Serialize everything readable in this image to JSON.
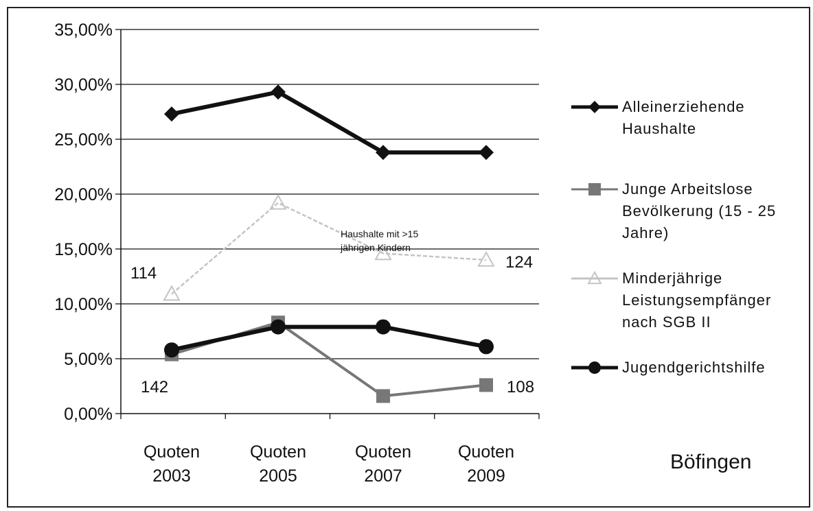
{
  "chart_data": {
    "type": "line",
    "categories": [
      [
        "Quoten",
        "2003"
      ],
      [
        "Quoten",
        "2005"
      ],
      [
        "Quoten",
        "2007"
      ],
      [
        "Quoten",
        "2009"
      ]
    ],
    "y_ticks": [
      "0,00%",
      "5,00%",
      "10,00%",
      "15,00%",
      "20,00%",
      "25,00%",
      "30,00%",
      "35,00%"
    ],
    "ylim": [
      0,
      35
    ],
    "grid": "horizontal",
    "legend_position": "right",
    "series": [
      {
        "name": "Alleinerziehende Haushalte",
        "legend_lines": [
          "Alleinerziehende",
          "Haushalte"
        ],
        "values": [
          27.3,
          29.3,
          23.8,
          23.8
        ],
        "marker": "diamond",
        "color": "#111111",
        "style": "solid"
      },
      {
        "name": "Junge Arbeitslose Bevölkerung (15 - 25 Jahre)",
        "legend_lines": [
          "Junge  Arbeitslose",
          "Bevölkerung (15 - 25",
          "Jahre)"
        ],
        "values": [
          5.4,
          8.3,
          1.6,
          2.6
        ],
        "marker": "square",
        "color": "#777777",
        "style": "faint"
      },
      {
        "name": "Minderjährige Leistungsempfänger nach SGB II",
        "legend_lines": [
          "Minderjährige",
          "Leistungsempfänger",
          "nach SGB II"
        ],
        "values": [
          10.9,
          19.2,
          14.6,
          14.0
        ],
        "marker": "triangle",
        "color": "#c4c4c4",
        "style": "faint"
      },
      {
        "name": "Jugendgerichtshilfe",
        "legend_lines": [
          "Jugendgerichtshilfe"
        ],
        "values": [
          5.8,
          7.9,
          7.9,
          6.1
        ],
        "marker": "circle",
        "color": "#111111",
        "style": "solid"
      }
    ],
    "annotations": [
      "114",
      "142",
      "124",
      "108",
      "Haushalte mit >15",
      "jährigen Kindern"
    ],
    "corner_label": "Böfingen"
  }
}
